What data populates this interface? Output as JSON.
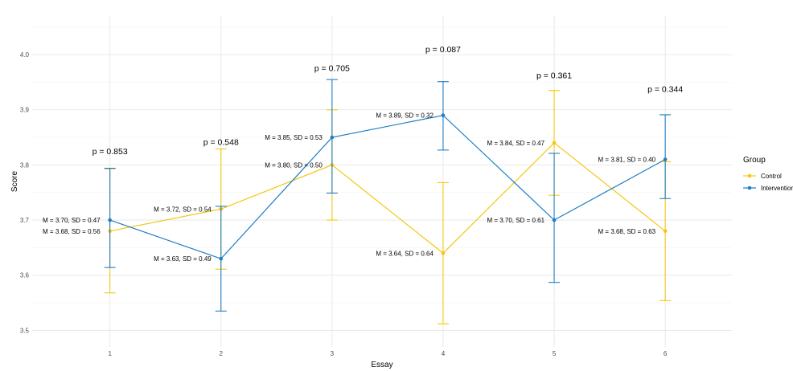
{
  "chart_data": {
    "type": "line",
    "xlabel": "Essay",
    "ylabel": "Score",
    "ylim": [
      3.47,
      4.07
    ],
    "yticks": [
      3.5,
      3.6,
      3.7,
      3.8,
      3.9,
      4.0
    ],
    "ytick_labels": [
      "3.5",
      "3.6",
      "3.7",
      "3.8",
      "3.9",
      "4.0"
    ],
    "xlim": [
      0.3,
      6.6
    ],
    "categories": [
      1,
      2,
      3,
      4,
      5,
      6
    ],
    "category_labels": [
      "1",
      "2",
      "3",
      "4",
      "5",
      "6"
    ],
    "grid": true,
    "legend": {
      "title": "Group",
      "position": "right"
    },
    "series": [
      {
        "name": "Control",
        "color": "#F5C710",
        "values": [
          3.68,
          3.72,
          3.8,
          3.64,
          3.84,
          3.68
        ],
        "ci_low": [
          3.568,
          3.611,
          3.7,
          3.512,
          3.745,
          3.554
        ],
        "ci_high": [
          3.793,
          3.829,
          3.9,
          3.768,
          3.935,
          3.806
        ],
        "labels": [
          "M = 3.68, SD = 0.56",
          "M = 3.72, SD = 0.54",
          "M = 3.80, SD = 0.50",
          "M = 3.64, SD = 0.64",
          "M = 3.84, SD = 0.47",
          "M = 3.68, SD = 0.63"
        ]
      },
      {
        "name": "Intervention",
        "color": "#1F7EC4",
        "values": [
          3.7,
          3.63,
          3.85,
          3.89,
          3.7,
          3.81
        ],
        "ci_low": [
          3.614,
          3.535,
          3.749,
          3.827,
          3.587,
          3.739
        ],
        "ci_high": [
          3.794,
          3.725,
          3.955,
          3.951,
          3.821,
          3.891
        ],
        "labels": [
          "M = 3.70, SD = 0.47",
          "M = 3.63, SD = 0.49",
          "M = 3.85, SD = 0.53",
          "M = 3.89, SD = 0.32",
          "M = 3.70, SD = 0.61",
          "M = 3.81, SD = 0.40"
        ]
      }
    ],
    "p_values": [
      "p = 0.853",
      "p = 0.548",
      "p = 0.705",
      "p = 0.087",
      "p = 0.361",
      "p = 0.344"
    ],
    "p_value_y": [
      3.825,
      3.842,
      3.976,
      4.01,
      3.963,
      3.938
    ]
  }
}
